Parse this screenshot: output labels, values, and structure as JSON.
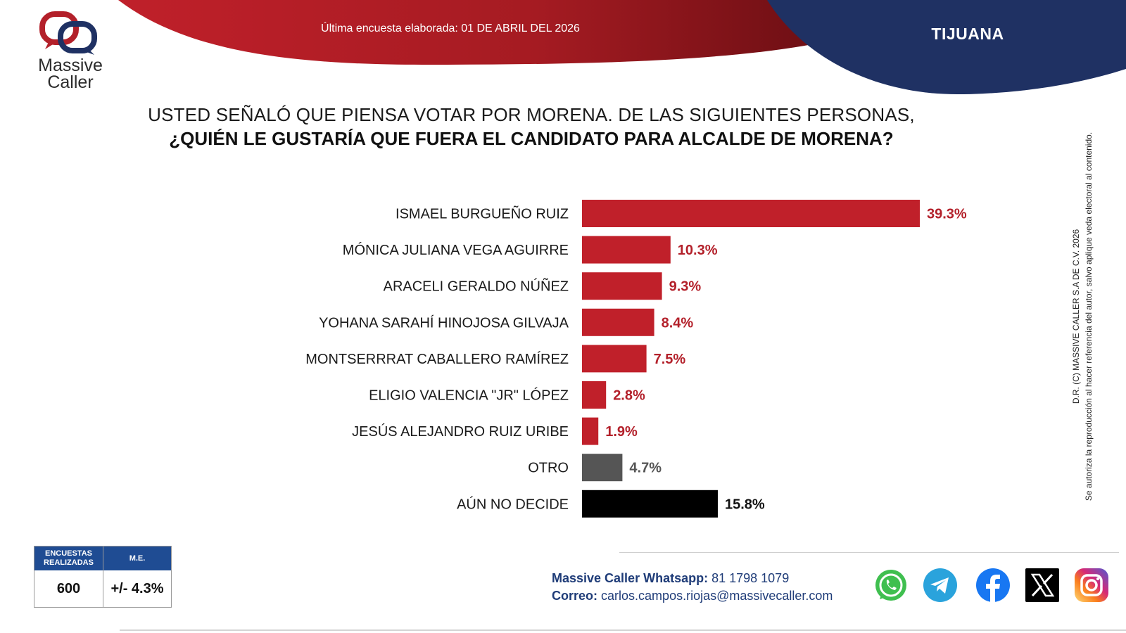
{
  "header": {
    "survey_date": "Última encuesta elaborada: 01 DE ABRIL DEL 2026",
    "city": "TIJUANA",
    "colors": {
      "red": "#c0202a",
      "dark_red": "#6e0f14",
      "navy": "#1f3163"
    }
  },
  "logo": {
    "line1": "Massive",
    "line2": "Caller",
    "icon": "speech-bubbles-logo-icon"
  },
  "question": {
    "line1": "USTED SEÑALÓ QUE PIENSA VOTAR POR MORENA. DE LAS SIGUIENTES PERSONAS,",
    "line2": "¿QUIÉN LE GUSTARÍA QUE FUERA EL CANDIDATO PARA ALCALDE DE MORENA?"
  },
  "chart_data": {
    "type": "bar",
    "orientation": "horizontal",
    "categories": [
      "ISMAEL BURGUEÑO RUIZ",
      "MÓNICA JULIANA VEGA AGUIRRE",
      "ARACELI GERALDO NÚÑEZ",
      "YOHANA SARAHÍ HINOJOSA GILVAJA",
      "MONTSERRRAT CABALLERO RAMÍREZ",
      "ELIGIO VALENCIA \"JR\" LÓPEZ",
      "JESÚS ALEJANDRO RUIZ URIBE",
      "OTRO",
      "AÚN NO DECIDE"
    ],
    "values": [
      39.3,
      10.3,
      9.3,
      8.4,
      7.5,
      2.8,
      1.9,
      4.7,
      15.8
    ],
    "value_labels": [
      "39.3%",
      "10.3%",
      "9.3%",
      "8.4%",
      "7.5%",
      "2.8%",
      "1.9%",
      "4.7%",
      "15.8%"
    ],
    "bar_colors": [
      "#c0202a",
      "#c0202a",
      "#c0202a",
      "#c0202a",
      "#c0202a",
      "#c0202a",
      "#c0202a",
      "#555555",
      "#000000"
    ],
    "label_colors": [
      "#b3202a",
      "#b3202a",
      "#b3202a",
      "#b3202a",
      "#b3202a",
      "#b3202a",
      "#b3202a",
      "#555555",
      "#111111"
    ],
    "xlim": [
      0,
      39.3
    ],
    "grid": false
  },
  "side_note": {
    "line1": "D.R. (C) MASSIVE CALLER S.A DE C.V. 2026",
    "line2": "Se autoriza la reproducción al hacer referencia del autor, salvo aplique veda electoral al contenido."
  },
  "stats": {
    "surveys_label": "ENCUESTAS REALIZADAS",
    "surveys_value": "600",
    "me_label": "M.E.",
    "me_value": "+/- 4.3%"
  },
  "contact": {
    "whatsapp_label": "Massive Caller Whatsapp:",
    "whatsapp_value": "81 1798 1079",
    "email_label": "Correo:",
    "email_value": "carlos.campos.riojas@massivecaller.com"
  },
  "social": {
    "icons": [
      "whatsapp-icon",
      "telegram-icon",
      "facebook-icon",
      "x-icon",
      "instagram-icon"
    ],
    "colors": {
      "whatsapp": "#3fbf4f",
      "telegram": "#2aa3dc",
      "facebook": "#1877f2",
      "x": "#000000",
      "instagram": "#d62976"
    }
  }
}
